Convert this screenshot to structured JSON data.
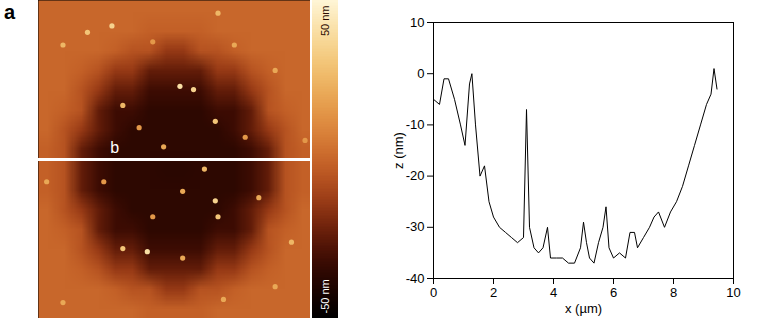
{
  "chart_data": [
    {
      "type": "heatmap",
      "panel": "a",
      "xlim": [
        0,
        10
      ],
      "ylim": [
        0,
        10
      ],
      "tick_labels": false,
      "cells": [
        [
          0,
          0,
          0,
          0,
          0,
          0,
          0,
          0,
          0,
          0,
          0,
          0,
          0,
          0,
          0,
          0
        ],
        [
          0,
          0,
          0,
          0,
          0,
          0,
          -2,
          -2,
          -2,
          -2,
          0,
          0,
          0,
          0,
          0,
          0
        ],
        [
          0,
          0,
          0,
          0,
          -2,
          -6,
          -6,
          -14,
          -14,
          -6,
          -6,
          -2,
          0,
          0,
          0,
          0
        ],
        [
          0,
          0,
          -2,
          -6,
          -14,
          -14,
          -24,
          -24,
          -24,
          -24,
          -14,
          -14,
          -6,
          -2,
          0,
          0
        ],
        [
          0,
          0,
          -6,
          -14,
          -24,
          -24,
          -32,
          -32,
          -32,
          -32,
          -24,
          -24,
          -14,
          -6,
          0,
          0
        ],
        [
          0,
          -2,
          -6,
          -24,
          -32,
          -32,
          -36,
          -36,
          -36,
          -36,
          -32,
          -32,
          -24,
          -6,
          -2,
          0
        ],
        [
          0,
          -6,
          -14,
          -24,
          -32,
          -36,
          -36,
          -36,
          -36,
          -36,
          -36,
          -32,
          -24,
          -14,
          -6,
          0
        ],
        [
          -2,
          -6,
          -24,
          -32,
          -36,
          -36,
          -36,
          -36,
          -36,
          -36,
          -36,
          -36,
          -32,
          -24,
          -6,
          -2
        ],
        [
          -2,
          -6,
          -24,
          -32,
          -36,
          -36,
          -36,
          -37,
          -37,
          -36,
          -36,
          -36,
          -32,
          -24,
          -6,
          -2
        ],
        [
          -2,
          -6,
          -24,
          -32,
          -36,
          -36,
          -36,
          -36,
          -36,
          -36,
          -36,
          -36,
          -32,
          -24,
          -6,
          -2
        ],
        [
          0,
          -6,
          -14,
          -24,
          -32,
          -36,
          -36,
          -36,
          -36,
          -36,
          -36,
          -32,
          -24,
          -14,
          -6,
          0
        ],
        [
          0,
          -2,
          -6,
          -24,
          -32,
          -32,
          -36,
          -36,
          -36,
          -36,
          -32,
          -32,
          -24,
          -6,
          -2,
          0
        ],
        [
          0,
          0,
          -6,
          -14,
          -24,
          -24,
          -32,
          -32,
          -32,
          -32,
          -24,
          -24,
          -14,
          -6,
          0,
          0
        ],
        [
          0,
          0,
          -2,
          -6,
          -14,
          -14,
          -24,
          -24,
          -24,
          -24,
          -14,
          -14,
          -6,
          -2,
          0,
          0
        ],
        [
          0,
          0,
          0,
          0,
          -2,
          -6,
          -6,
          -14,
          -14,
          -6,
          -6,
          -2,
          0,
          0,
          0,
          0
        ],
        [
          0,
          0,
          0,
          0,
          0,
          0,
          -2,
          -2,
          -2,
          -2,
          0,
          0,
          0,
          0,
          0,
          0
        ]
      ],
      "particles": [
        {
          "x": 1.8,
          "y": 1.0,
          "z": 30
        },
        {
          "x": 2.7,
          "y": 0.8,
          "z": 35
        },
        {
          "x": 0.9,
          "y": 1.4,
          "z": 25
        },
        {
          "x": 6.6,
          "y": 0.4,
          "z": 25
        },
        {
          "x": 7.2,
          "y": 1.4,
          "z": 20
        },
        {
          "x": 5.2,
          "y": 2.7,
          "z": 40
        },
        {
          "x": 5.7,
          "y": 2.8,
          "z": 35
        },
        {
          "x": 8.7,
          "y": 2.2,
          "z": 20
        },
        {
          "x": 3.1,
          "y": 3.3,
          "z": 25
        },
        {
          "x": 3.7,
          "y": 4.0,
          "z": 15
        },
        {
          "x": 6.5,
          "y": 3.8,
          "z": 30
        },
        {
          "x": 7.6,
          "y": 4.3,
          "z": 15
        },
        {
          "x": 4.6,
          "y": 4.6,
          "z": 20
        },
        {
          "x": 6.1,
          "y": 5.3,
          "z": 25
        },
        {
          "x": 2.4,
          "y": 5.7,
          "z": 15
        },
        {
          "x": 5.3,
          "y": 6.0,
          "z": 20
        },
        {
          "x": 6.5,
          "y": 6.3,
          "z": 35
        },
        {
          "x": 6.6,
          "y": 6.8,
          "z": 30
        },
        {
          "x": 4.2,
          "y": 6.8,
          "z": 15
        },
        {
          "x": 8.1,
          "y": 6.2,
          "z": 20
        },
        {
          "x": 3.1,
          "y": 7.8,
          "z": 30
        },
        {
          "x": 4.0,
          "y": 7.9,
          "z": 40
        },
        {
          "x": 5.3,
          "y": 8.1,
          "z": 20
        },
        {
          "x": 9.3,
          "y": 7.6,
          "z": 25
        },
        {
          "x": 0.9,
          "y": 9.5,
          "z": 20
        },
        {
          "x": 6.8,
          "y": 9.4,
          "z": 20
        },
        {
          "x": 0.3,
          "y": 5.7,
          "z": 20
        },
        {
          "x": 9.8,
          "y": 4.4,
          "z": 15
        },
        {
          "x": 8.7,
          "y": 9.0,
          "z": 20
        },
        {
          "x": 4.2,
          "y": 1.3,
          "z": 15
        }
      ],
      "profile_line": {
        "y": 5,
        "x": [
          0,
          10
        ],
        "label": "b"
      },
      "colorbar": {
        "range": [
          -50,
          50
        ],
        "ticks": [
          {
            "value": 50,
            "label": "50 nm"
          },
          {
            "value": -50,
            "label": "-50 nm"
          }
        ]
      }
    },
    {
      "type": "line",
      "panel": "b",
      "xlabel": "x (µm)",
      "ylabel": "z (nm)",
      "color": "#000000",
      "x": [
        0,
        0.2,
        0.35,
        0.5,
        0.7,
        0.9,
        1.05,
        1.2,
        1.28,
        1.4,
        1.55,
        1.7,
        1.85,
        2.0,
        2.2,
        2.4,
        2.6,
        2.8,
        3.0,
        3.1,
        3.2,
        3.35,
        3.5,
        3.65,
        3.8,
        3.9,
        4.1,
        4.3,
        4.5,
        4.7,
        4.9,
        5.0,
        5.1,
        5.2,
        5.35,
        5.5,
        5.65,
        5.75,
        5.85,
        6.0,
        6.2,
        6.4,
        6.55,
        6.7,
        6.8,
        7.0,
        7.2,
        7.35,
        7.5,
        7.7,
        7.9,
        8.1,
        8.3,
        8.5,
        8.7,
        8.9,
        9.1,
        9.25,
        9.35,
        9.45
      ],
      "values": [
        -5,
        -6,
        -1,
        -1,
        -5,
        -10,
        -14,
        -2,
        0,
        -10,
        -20,
        -18,
        -25,
        -28,
        -30,
        -31,
        -32,
        -33,
        -32,
        -7,
        -30,
        -34,
        -35,
        -34,
        -30,
        -36,
        -36,
        -36,
        -37,
        -37,
        -34,
        -29,
        -33,
        -36,
        -37,
        -33,
        -30,
        -26,
        -34,
        -36,
        -35,
        -36,
        -31,
        -31,
        -34,
        -32,
        -30,
        -28,
        -27,
        -30,
        -27,
        -25,
        -22,
        -18,
        -14,
        -10,
        -6,
        -4,
        1,
        -3
      ],
      "xlim": [
        0,
        10
      ],
      "ylim": [
        -40,
        10
      ],
      "xticks": [
        0,
        2,
        4,
        6,
        8,
        10
      ],
      "yticks": [
        -40,
        -30,
        -20,
        -10,
        0,
        10
      ]
    }
  ]
}
